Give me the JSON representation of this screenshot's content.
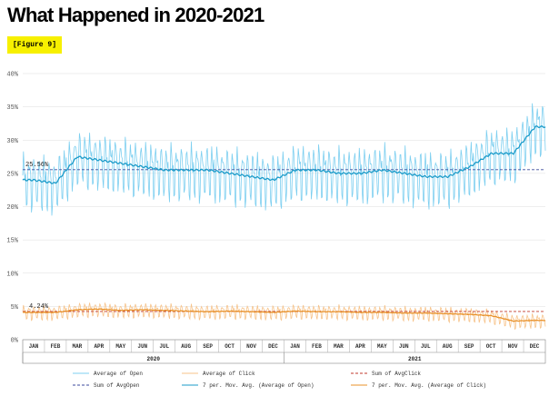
{
  "page": {
    "title": "What Happened in 2020-2021",
    "figure_label": "[Figure 9]"
  },
  "chart_data": {
    "type": "line",
    "y_ticks": [
      "0%",
      "5%",
      "10%",
      "15%",
      "20%",
      "25%",
      "30%",
      "35%",
      "40%"
    ],
    "ylim": [
      0,
      40
    ],
    "grid": true,
    "months": [
      "JAN",
      "FEB",
      "MAR",
      "APR",
      "MAY",
      "JUN",
      "JUL",
      "AUG",
      "SEP",
      "OCT",
      "NOV",
      "DEC",
      "JAN",
      "FEB",
      "MAR",
      "APR",
      "MAY",
      "JUN",
      "JUL",
      "AUG",
      "SEP",
      "OCT",
      "NOV",
      "DEC"
    ],
    "years": [
      "2020",
      "2021"
    ],
    "annotations": {
      "open_reference_label": "25.56%",
      "click_reference_label": "4.24%"
    },
    "reference_lines": {
      "sum_avg_open": 25.56,
      "sum_avg_click": 4.24
    },
    "series": [
      {
        "name": "7 per. Mov. Avg. (Average of Open)",
        "monthly_values": [
          24.0,
          23.5,
          27.5,
          27.0,
          26.5,
          26.0,
          25.5,
          25.5,
          25.5,
          25.0,
          24.5,
          24.0,
          25.5,
          25.5,
          25.0,
          25.0,
          25.5,
          25.0,
          24.5,
          24.5,
          26.0,
          28.0,
          28.0,
          32.0
        ]
      },
      {
        "name": "7 per. Mov. Avg. (Average of Click)",
        "monthly_values": [
          4.1,
          4.1,
          4.5,
          4.6,
          4.4,
          4.5,
          4.4,
          4.3,
          4.2,
          4.3,
          4.2,
          4.1,
          4.3,
          4.2,
          4.2,
          4.1,
          4.1,
          4.0,
          4.0,
          3.9,
          3.8,
          3.6,
          2.8,
          2.9
        ]
      }
    ],
    "daily_amplitude": {
      "open": 3.5,
      "click": 0.9
    },
    "legend": [
      {
        "label": "Average of Open",
        "color": "#7dcff0",
        "style": "solid"
      },
      {
        "label": "Average of Click",
        "color": "#f7c38a",
        "style": "solid"
      },
      {
        "label": "Sum of AvgClick",
        "color": "#c0392b",
        "style": "dashed"
      },
      {
        "label": "Sum of AvgOpen",
        "color": "#3b4a9c",
        "style": "dashed"
      },
      {
        "label": "7 per. Mov. Avg. (Average of Open)",
        "color": "#1b9bc9",
        "style": "solid"
      },
      {
        "label": "7 per. Mov. Avg. (Average of Click)",
        "color": "#e8912a",
        "style": "solid"
      }
    ],
    "colors": {
      "open_daily": "#7dcff0",
      "open_avg": "#1b9bc9",
      "click_daily": "#f7c38a",
      "click_avg": "#e8912a",
      "ref_open": "#3b4a9c",
      "ref_click": "#c0392b",
      "grid": "#dddddd"
    }
  }
}
